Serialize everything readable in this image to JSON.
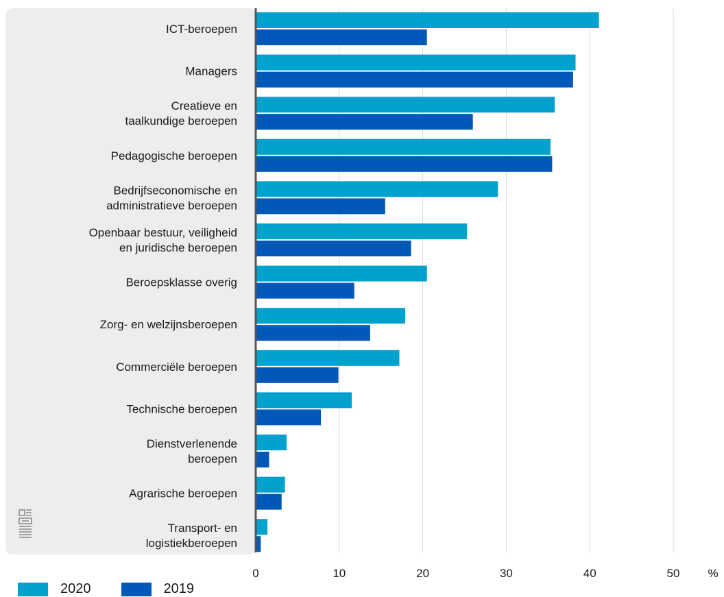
{
  "chart_data": {
    "type": "bar",
    "orientation": "horizontal",
    "title": "",
    "xlabel": "",
    "ylabel": "",
    "unit_label": "%",
    "xlim": [
      0,
      55
    ],
    "xticks": [
      0,
      10,
      20,
      30,
      40,
      50
    ],
    "grid": true,
    "legend_position": "bottom-left",
    "categories": [
      [
        "ICT-beroepen"
      ],
      [
        "Managers"
      ],
      [
        "Creatieve en",
        "taalkundige beroepen"
      ],
      [
        "Pedagogische beroepen"
      ],
      [
        "Bedrijfseconomische en",
        "administratieve beroepen"
      ],
      [
        "Openbaar bestuur, veiligheid",
        "en juridische beroepen"
      ],
      [
        "Beroepsklasse overig"
      ],
      [
        "Zorg- en welzijnsberoepen"
      ],
      [
        "Commerciële beroepen"
      ],
      [
        "Technische beroepen"
      ],
      [
        "Dienstverlenende",
        "beroepen"
      ],
      [
        "Agrarische beroepen"
      ],
      [
        "Transport- en",
        "logistiekberoepen"
      ]
    ],
    "series": [
      {
        "name": "2020",
        "color": "#00a1cd",
        "values": [
          41.1,
          38.3,
          35.8,
          35.3,
          29.0,
          25.3,
          20.5,
          17.9,
          17.2,
          11.5,
          3.7,
          3.5,
          1.4
        ]
      },
      {
        "name": "2019",
        "color": "#0058b8",
        "values": [
          20.5,
          38.0,
          26.0,
          35.5,
          15.5,
          18.6,
          11.8,
          13.7,
          9.9,
          7.8,
          1.6,
          3.1,
          0.6
        ]
      }
    ]
  },
  "colors": {
    "panel": "#ededed",
    "axis": "#555555",
    "grid": "#d9d9d9"
  },
  "logo": {
    "icon": "cbs-logo-icon"
  }
}
